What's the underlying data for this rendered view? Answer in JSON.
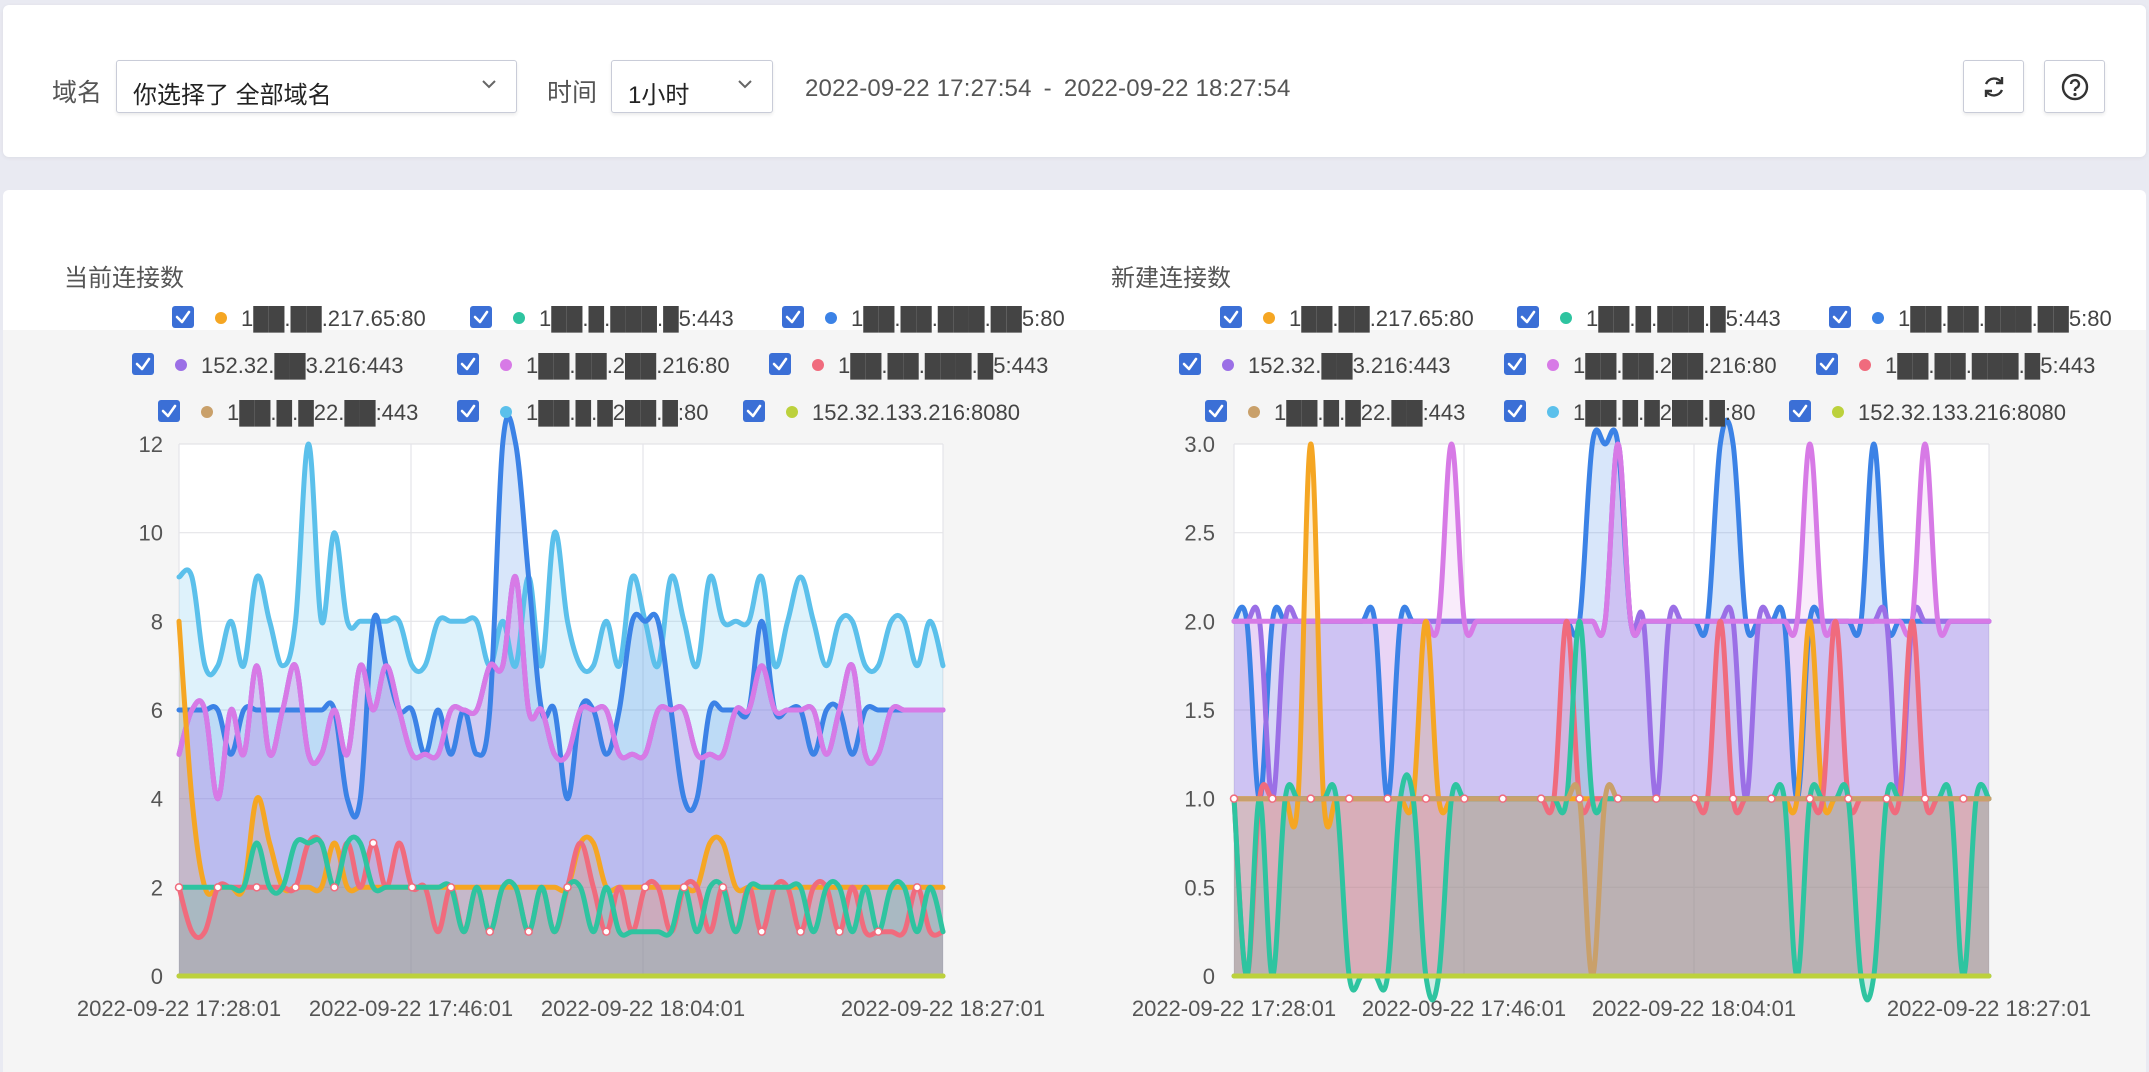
{
  "toolbar": {
    "domain_label": "域名",
    "domain_select": "你选择了 全部域名",
    "time_label": "时间",
    "time_select": "1小时",
    "range_start": "2022-09-22 17:27:54",
    "range_sep": "-",
    "range_end": "2022-09-22 18:27:54"
  },
  "icons": {
    "refresh": "refresh-icon",
    "help": "help-icon",
    "chevron": "chevron-down-icon",
    "checkbox": "checkbox-checked-icon"
  },
  "colors": {
    "accent": "#3b6fd6",
    "page_bg": "#e9eaf2"
  },
  "legend_texts": [
    "1██.██.217.65:80",
    "1██.█.███.█5:443",
    "1██.██.███.██5:80",
    "152.32.██3.216:443",
    "1██.██.2██.216:80",
    "1██.██.███.█5:443",
    "1██.█.█22.██:443",
    "1██.█.█2██.█:80",
    "152.32.133.216:8080"
  ],
  "chart_data": [
    {
      "type": "area",
      "title": "当前连接数",
      "x_ticks": [
        "2022-09-22 17:28:01",
        "2022-09-22 17:46:01",
        "2022-09-22 18:04:01",
        "2022-09-22 18:27:01"
      ],
      "xlim": [
        "2022-09-22 17:28:01",
        "2022-09-22 18:27:01"
      ],
      "ylim": [
        0,
        12
      ],
      "y_ticks": [
        "0",
        "2",
        "4",
        "6",
        "8",
        "10",
        "12"
      ],
      "grid": true,
      "legend": "top",
      "series_colors": [
        "#f5a623",
        "#2ec4a0",
        "#3b82e6",
        "#9b6fe6",
        "#d77ae6",
        "#f06b7d",
        "#c9a06a",
        "#5bc0eb",
        "#bcd13c"
      ],
      "series": [
        {
          "values": [
            8,
            4,
            2,
            2,
            2,
            2,
            4,
            3,
            2,
            2,
            2,
            2,
            3,
            2,
            2,
            2,
            2,
            2,
            2,
            2,
            2,
            2,
            2,
            2,
            2,
            2,
            2,
            2,
            2,
            2,
            2,
            3,
            3,
            2,
            2,
            2,
            2,
            2,
            2,
            2,
            2,
            3,
            3,
            2,
            2,
            2,
            2,
            2,
            2,
            2,
            2,
            2,
            2,
            2,
            2,
            2,
            2,
            2,
            2,
            2
          ]
        },
        {
          "values": [
            2,
            2,
            2,
            2,
            2,
            2,
            3,
            2,
            2,
            3,
            3,
            3,
            2,
            3,
            3,
            2,
            2,
            2,
            2,
            2,
            2,
            2,
            1,
            2,
            1,
            2,
            2,
            1,
            2,
            1,
            2,
            2,
            1,
            2,
            1,
            1,
            1,
            1,
            1,
            2,
            1,
            2,
            2,
            1,
            2,
            2,
            2,
            2,
            2,
            1,
            2,
            2,
            1,
            2,
            1,
            2,
            2,
            1,
            2,
            1
          ]
        },
        {
          "values": [
            6,
            6,
            6,
            6,
            5,
            6,
            6,
            6,
            6,
            6,
            6,
            6,
            6,
            4,
            4,
            8,
            7,
            6,
            6,
            5,
            6,
            5,
            6,
            5,
            6,
            12,
            12,
            9,
            6,
            6,
            4,
            6,
            6,
            5,
            6,
            8,
            8,
            8,
            6,
            4,
            4,
            6,
            6,
            6,
            6,
            8,
            6,
            6,
            6,
            5,
            6,
            6,
            5,
            6,
            6,
            6,
            6,
            6,
            6,
            6
          ]
        },
        {
          "values": [
            5,
            6,
            6,
            4,
            6,
            5,
            7,
            5,
            6,
            7,
            5,
            5,
            6,
            5,
            7,
            6,
            7,
            6,
            5,
            5,
            5,
            6,
            6,
            6,
            7,
            7,
            9,
            6,
            6,
            5,
            5,
            6,
            6,
            6,
            5,
            5,
            5,
            6,
            6,
            6,
            5,
            5,
            5,
            6,
            6,
            7,
            6,
            6,
            6,
            6,
            5,
            6,
            7,
            5,
            5,
            6,
            6,
            6,
            6,
            6
          ]
        },
        {
          "values": [
            5,
            6,
            6,
            4,
            6,
            5,
            7,
            5,
            6,
            7,
            5,
            5,
            6,
            5,
            7,
            6,
            7,
            6,
            5,
            5,
            5,
            6,
            6,
            6,
            7,
            7,
            9,
            6,
            6,
            5,
            5,
            6,
            6,
            6,
            5,
            5,
            5,
            6,
            6,
            6,
            5,
            5,
            5,
            6,
            6,
            7,
            6,
            6,
            6,
            6,
            5,
            6,
            7,
            5,
            5,
            6,
            6,
            6,
            6,
            6
          ]
        },
        {
          "values": [
            2,
            1,
            1,
            2,
            2,
            2,
            2,
            2,
            2,
            2,
            3,
            3,
            2,
            3,
            2,
            3,
            2,
            3,
            2,
            2,
            1,
            2,
            1,
            2,
            1,
            2,
            2,
            1,
            2,
            1,
            2,
            3,
            2,
            1,
            2,
            1,
            2,
            2,
            1,
            2,
            2,
            1,
            2,
            1,
            2,
            1,
            2,
            2,
            1,
            2,
            2,
            1,
            2,
            1,
            1,
            1,
            1,
            2,
            1,
            1
          ]
        },
        {
          "values": [
            0,
            0,
            0,
            0,
            0,
            0,
            0,
            0,
            0,
            0,
            0,
            0,
            0,
            0,
            0,
            0,
            0,
            0,
            0,
            0,
            0,
            0,
            0,
            0,
            0,
            0,
            0,
            0,
            0,
            0,
            0,
            0,
            0,
            0,
            0,
            0,
            0,
            0,
            0,
            0,
            0,
            0,
            0,
            0,
            0,
            0,
            0,
            0,
            0,
            0,
            0,
            0,
            0,
            0,
            0,
            0,
            0,
            0,
            0,
            0
          ]
        },
        {
          "values": [
            9,
            9,
            7,
            7,
            8,
            7,
            9,
            8,
            7,
            8,
            12,
            8,
            10,
            8,
            8,
            8,
            8,
            8,
            7,
            7,
            8,
            8,
            8,
            8,
            7,
            8,
            7,
            9,
            7,
            10,
            8,
            7,
            7,
            8,
            7,
            9,
            8,
            7,
            9,
            8,
            7,
            9,
            8,
            8,
            8,
            9,
            7,
            8,
            9,
            8,
            7,
            8,
            8,
            7,
            7,
            8,
            8,
            7,
            8,
            7
          ]
        },
        {
          "values": [
            0,
            0,
            0,
            0,
            0,
            0,
            0,
            0,
            0,
            0,
            0,
            0,
            0,
            0,
            0,
            0,
            0,
            0,
            0,
            0,
            0,
            0,
            0,
            0,
            0,
            0,
            0,
            0,
            0,
            0,
            0,
            0,
            0,
            0,
            0,
            0,
            0,
            0,
            0,
            0,
            0,
            0,
            0,
            0,
            0,
            0,
            0,
            0,
            0,
            0,
            0,
            0,
            0,
            0,
            0,
            0,
            0,
            0,
            0,
            0
          ]
        }
      ]
    },
    {
      "type": "area",
      "title": "新建连接数",
      "x_ticks": [
        "2022-09-22 17:28:01",
        "2022-09-22 17:46:01",
        "2022-09-22 18:04:01",
        "2022-09-22 18:27:01"
      ],
      "xlim": [
        "2022-09-22 17:28:01",
        "2022-09-22 18:27:01"
      ],
      "ylim": [
        0,
        3
      ],
      "y_ticks": [
        "0",
        "0.5",
        "1.0",
        "1.5",
        "2.0",
        "2.5",
        "3.0"
      ],
      "grid": true,
      "legend": "top",
      "series_colors": [
        "#f5a623",
        "#2ec4a0",
        "#3b82e6",
        "#9b6fe6",
        "#d77ae6",
        "#f06b7d",
        "#c9a06a",
        "#5bc0eb",
        "#bcd13c"
      ],
      "series": [
        {
          "values": [
            1,
            1,
            1,
            1,
            1,
            1,
            3,
            1,
            1,
            1,
            1,
            1,
            1,
            1,
            1,
            2,
            1,
            1,
            1,
            1,
            1,
            1,
            1,
            1,
            1,
            1,
            1,
            1,
            1,
            1,
            1,
            1,
            1,
            1,
            1,
            1,
            1,
            1,
            1,
            1,
            1,
            1,
            1,
            1,
            1,
            2,
            1,
            1,
            1,
            1,
            1,
            1,
            1,
            1,
            1,
            1,
            1,
            1,
            1,
            1
          ]
        },
        {
          "values": [
            1,
            0,
            1,
            0,
            1,
            1,
            1,
            1,
            1,
            0,
            0,
            0,
            0,
            1,
            1,
            0,
            0,
            1,
            1,
            1,
            1,
            1,
            1,
            1,
            1,
            1,
            1,
            2,
            1,
            1,
            1,
            1,
            1,
            1,
            1,
            1,
            1,
            1,
            1,
            1,
            1,
            1,
            1,
            1,
            0,
            1,
            1,
            1,
            1,
            0,
            0,
            1,
            1,
            1,
            1,
            1,
            1,
            0,
            1,
            1
          ]
        },
        {
          "values": [
            2,
            2,
            1,
            2,
            2,
            2,
            2,
            2,
            2,
            2,
            2,
            2,
            1,
            2,
            2,
            2,
            2,
            2,
            2,
            2,
            2,
            2,
            2,
            2,
            2,
            2,
            2,
            2,
            3,
            3,
            3,
            2,
            2,
            2,
            2,
            2,
            2,
            2,
            3,
            3,
            2,
            2,
            2,
            2,
            1,
            2,
            2,
            2,
            2,
            2,
            3,
            2,
            2,
            2,
            2,
            2,
            2,
            2,
            2,
            2
          ]
        },
        {
          "values": [
            2,
            2,
            2,
            1,
            2,
            2,
            2,
            2,
            2,
            2,
            2,
            2,
            2,
            2,
            2,
            2,
            2,
            2,
            2,
            2,
            2,
            2,
            2,
            2,
            2,
            2,
            2,
            2,
            2,
            2,
            3,
            2,
            2,
            1,
            2,
            2,
            2,
            2,
            2,
            2,
            1,
            2,
            2,
            2,
            2,
            2,
            2,
            2,
            2,
            2,
            2,
            2,
            1,
            2,
            2,
            2,
            2,
            2,
            2,
            2
          ]
        },
        {
          "values": [
            2,
            2,
            2,
            2,
            2,
            2,
            2,
            2,
            2,
            2,
            2,
            2,
            2,
            2,
            2,
            2,
            2,
            3,
            2,
            2,
            2,
            2,
            2,
            2,
            2,
            2,
            2,
            2,
            2,
            2,
            3,
            2,
            2,
            2,
            2,
            2,
            2,
            2,
            2,
            2,
            2,
            2,
            2,
            2,
            2,
            3,
            2,
            2,
            2,
            2,
            2,
            2,
            2,
            2,
            3,
            2,
            2,
            2,
            2,
            2
          ]
        },
        {
          "values": [
            1,
            0,
            1,
            1,
            1,
            1,
            1,
            1,
            1,
            1,
            1,
            1,
            1,
            1,
            1,
            1,
            1,
            1,
            1,
            1,
            1,
            1,
            1,
            1,
            1,
            1,
            2,
            1,
            1,
            1,
            1,
            1,
            1,
            1,
            1,
            1,
            1,
            1,
            2,
            1,
            1,
            1,
            1,
            1,
            1,
            1,
            1,
            2,
            1,
            1,
            1,
            1,
            1,
            2,
            1,
            1,
            1,
            1,
            1,
            1
          ]
        },
        {
          "values": [
            1,
            1,
            1,
            1,
            1,
            1,
            1,
            1,
            1,
            1,
            1,
            1,
            1,
            1,
            1,
            1,
            1,
            1,
            1,
            1,
            1,
            1,
            1,
            1,
            1,
            1,
            1,
            1,
            0,
            1,
            1,
            1,
            1,
            1,
            1,
            1,
            1,
            1,
            1,
            1,
            1,
            1,
            1,
            1,
            1,
            1,
            1,
            1,
            1,
            1,
            1,
            1,
            1,
            1,
            1,
            1,
            1,
            1,
            1,
            1
          ]
        },
        {
          "values": [
            0,
            0,
            0,
            0,
            0,
            0,
            0,
            0,
            0,
            0,
            0,
            0,
            0,
            0,
            0,
            0,
            0,
            0,
            0,
            0,
            0,
            0,
            0,
            0,
            0,
            0,
            0,
            0,
            0,
            0,
            0,
            0,
            0,
            0,
            0,
            0,
            0,
            0,
            0,
            0,
            0,
            0,
            0,
            0,
            0,
            0,
            0,
            0,
            0,
            0,
            0,
            0,
            0,
            0,
            0,
            0,
            0,
            0,
            0,
            0
          ]
        },
        {
          "values": [
            0,
            0,
            0,
            0,
            0,
            0,
            0,
            0,
            0,
            0,
            0,
            0,
            0,
            0,
            0,
            0,
            0,
            0,
            0,
            0,
            0,
            0,
            0,
            0,
            0,
            0,
            0,
            0,
            0,
            0,
            0,
            0,
            0,
            0,
            0,
            0,
            0,
            0,
            0,
            0,
            0,
            0,
            0,
            0,
            0,
            0,
            0,
            0,
            0,
            0,
            0,
            0,
            0,
            0,
            0,
            0,
            0,
            0,
            0,
            0
          ]
        }
      ]
    }
  ]
}
